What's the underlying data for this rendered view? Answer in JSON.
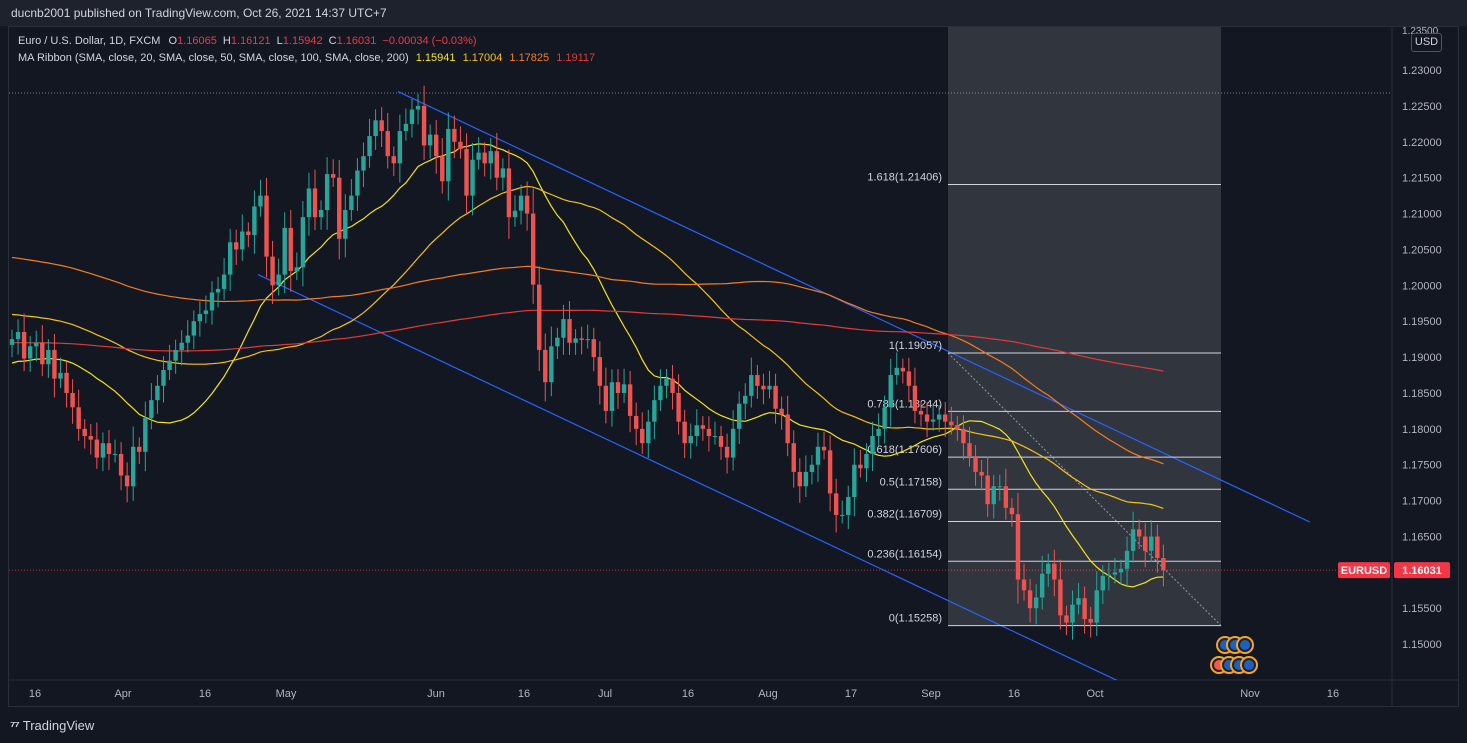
{
  "header": {
    "publisher_text": "ducnb2001 published on TradingView.com, Oct 26, 2021 14:37 UTC+7"
  },
  "footer": {
    "brand": "TradingView"
  },
  "legend": {
    "symbol_line": "Euro / U.S. Dollar, 1D, FXCM",
    "o_label": "O",
    "o_value": "1.16065",
    "h_label": "H",
    "h_value": "1.16121",
    "l_label": "L",
    "l_value": "1.15942",
    "c_label": "C",
    "c_value": "1.16031",
    "change": "−0.00034 (−0.03%)",
    "ma_label": "MA Ribbon (SMA, close, 20, SMA, close, 50, SMA, close, 100, SMA, close, 200)",
    "ma_values": [
      "1.15941",
      "1.17004",
      "1.17825",
      "1.19117"
    ],
    "ma_colors": [
      "#f5e51b",
      "#f5c215",
      "#f57c1f",
      "#e53935"
    ]
  },
  "price_axis": {
    "currency": "USD",
    "top_partial": "1.23500",
    "ticks": [
      "1.23000",
      "1.22500",
      "1.22000",
      "1.21500",
      "1.21000",
      "1.20500",
      "1.20000",
      "1.19500",
      "1.19000",
      "1.18500",
      "1.18000",
      "1.17500",
      "1.17000",
      "1.16500",
      "1.16000",
      "1.15500",
      "1.15000"
    ],
    "last_symbol": "EURUSD",
    "last_price": "1.16031"
  },
  "time_axis": {
    "labels": [
      "16",
      "Apr",
      "16",
      "May",
      "Jun",
      "16",
      "Jul",
      "16",
      "Aug",
      "17",
      "Sep",
      "16",
      "Oct",
      "Nov",
      "16"
    ]
  },
  "chart_data": {
    "type": "candlestick",
    "symbol": "EURUSD",
    "timeframe": "1D",
    "ylim": [
      1.145,
      1.236
    ],
    "fibonacci": {
      "levels": [
        {
          "label": "1.618(1.21406)",
          "ratio": 1.618,
          "price": 1.21406
        },
        {
          "label": "1(1.19057)",
          "ratio": 1,
          "price": 1.19057
        },
        {
          "label": "0.786(1.18244)",
          "ratio": 0.786,
          "price": 1.18244
        },
        {
          "label": "0.618(1.17606)",
          "ratio": 0.618,
          "price": 1.17606
        },
        {
          "label": "0.5(1.17158)",
          "ratio": 0.5,
          "price": 1.17158
        },
        {
          "label": "0.382(1.16709)",
          "ratio": 0.382,
          "price": 1.16709
        },
        {
          "label": "0.236(1.16154)",
          "ratio": 0.236,
          "price": 1.16154
        },
        {
          "label": "0(1.15258)",
          "ratio": 0,
          "price": 1.15258
        }
      ]
    },
    "closes": [
      1.1925,
      1.1935,
      1.1898,
      1.1915,
      1.192,
      1.189,
      1.191,
      1.187,
      1.1878,
      1.185,
      1.183,
      1.18,
      1.179,
      1.1785,
      1.176,
      1.178,
      1.1765,
      1.1765,
      1.1735,
      1.172,
      1.1775,
      1.1768,
      1.1815,
      1.184,
      1.186,
      1.1882,
      1.1895,
      1.191,
      1.192,
      1.193,
      1.195,
      1.196,
      1.1965,
      1.199,
      1.1995,
      1.2015,
      1.206,
      1.205,
      1.2075,
      1.207,
      1.211,
      1.2125,
      1.204,
      1.2,
      1.2015,
      1.208,
      1.202,
      1.2025,
      1.2095,
      1.2135,
      1.2095,
      1.2105,
      1.2155,
      1.215,
      1.2065,
      1.2105,
      1.2125,
      1.216,
      1.218,
      1.2208,
      1.223,
      1.2215,
      1.218,
      1.217,
      1.2215,
      1.2225,
      1.2245,
      1.225,
      1.2195,
      1.221,
      1.218,
      1.2145,
      1.2218,
      1.22,
      1.219,
      1.2125,
      1.2175,
      1.2185,
      1.217,
      1.2187,
      1.215,
      1.2163,
      1.2095,
      1.2104,
      1.2125,
      1.21,
      1.2001,
      1.191,
      1.1865,
      1.1915,
      1.1927,
      1.1953,
      1.192,
      1.1926,
      1.1924,
      1.1925,
      1.19,
      1.186,
      1.1825,
      1.1865,
      1.185,
      1.1862,
      1.1818,
      1.18,
      1.178,
      1.181,
      1.184,
      1.186,
      1.187,
      1.185,
      1.181,
      1.178,
      1.179,
      1.1805,
      1.18,
      1.179,
      1.179,
      1.1775,
      1.176,
      1.18,
      1.1835,
      1.1846,
      1.1875,
      1.186,
      1.1855,
      1.186,
      1.1828,
      1.182,
      1.178,
      1.174,
      1.172,
      1.174,
      1.175,
      1.1775,
      1.177,
      1.171,
      1.168,
      1.168,
      1.1705,
      1.175,
      1.1745,
      1.1765,
      1.179,
      1.18,
      1.183,
      1.1875,
      1.1885,
      1.188,
      1.186,
      1.1825,
      1.182,
      1.181,
      1.1813,
      1.182,
      1.181,
      1.1805,
      1.18,
      1.178,
      1.1762,
      1.174,
      1.1735,
      1.1695,
      1.172,
      1.172,
      1.169,
      1.1681,
      1.159,
      1.1575,
      1.155,
      1.1565,
      1.1598,
      1.1612,
      1.159,
      1.154,
      1.153,
      1.1555,
      1.1564,
      1.1535,
      1.153,
      1.1575,
      1.1595,
      1.1597,
      1.16,
      1.1605,
      1.163,
      1.166,
      1.165,
      1.163,
      1.165,
      1.162,
      1.1603
    ],
    "sma": [
      {
        "name": "SMA 20",
        "color": "#f5e51b",
        "last": 1.15941
      },
      {
        "name": "SMA 50",
        "color": "#f5c215",
        "last": 1.17004
      },
      {
        "name": "SMA 100",
        "color": "#f57c1f",
        "last": 1.17825
      },
      {
        "name": "SMA 200",
        "color": "#e53935",
        "last": 1.19117
      }
    ],
    "last_price": 1.16031
  }
}
